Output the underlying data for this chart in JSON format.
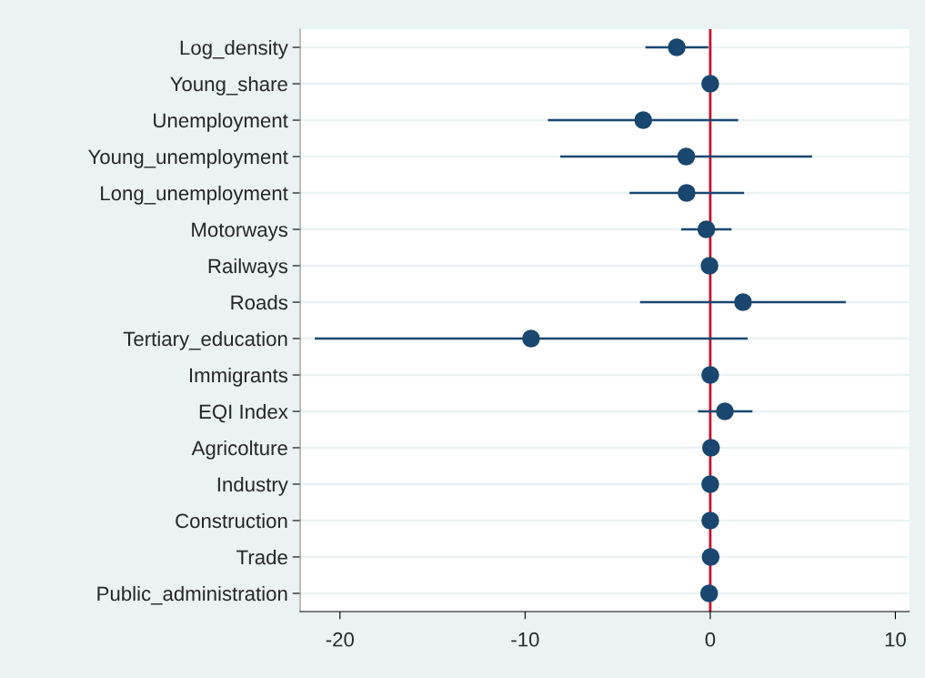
{
  "chart_data": {
    "type": "scatter",
    "orientation": "horizontal",
    "categories": [
      "Log_density",
      "Young_share",
      "Unemployment",
      "Young_unemployment",
      "Long_unemployment",
      "Motorways",
      "Railways",
      "Roads",
      "Tertiary_education",
      "Immigrants",
      "EQI Index",
      "Agricolture",
      "Industry",
      "Construction",
      "Trade",
      "Public_administration"
    ],
    "series": [
      {
        "color": "#1a476f",
        "values": [
          -1.81,
          0,
          -3.62,
          -1.3,
          -1.28,
          -0.21,
          -0.04,
          1.77,
          -9.68,
          0,
          0.79,
          0.04,
          0,
          0,
          0.02,
          -0.06
        ],
        "errors": [
          [
            -3.5,
            -0.1
          ],
          null,
          [
            -8.77,
            1.51
          ],
          [
            -8.1,
            5.5
          ],
          [
            -4.36,
            1.83
          ],
          [
            -1.57,
            1.15
          ],
          null,
          [
            -3.79,
            7.32
          ],
          [
            -21.36,
            2.02
          ],
          null,
          [
            -0.66,
            2.28
          ],
          null,
          null,
          null,
          null,
          null
        ]
      }
    ],
    "xlim": [
      -22.15,
      10.75
    ],
    "xticks": [
      -20,
      -10,
      0,
      10
    ],
    "ref_lines": [
      {
        "axis": "x",
        "value": 0,
        "color": "#c8102e"
      }
    ],
    "grid": "y",
    "marker": "circle"
  }
}
